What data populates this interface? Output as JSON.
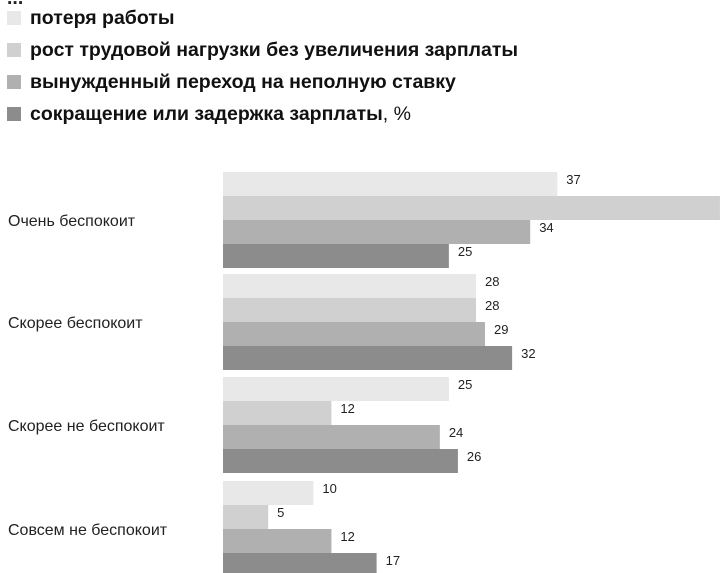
{
  "legend": {
    "header_fragment": "...",
    "suffix": ", %"
  },
  "chart_data": {
    "type": "bar",
    "orientation": "horizontal",
    "categories": [
      "Очень беспокоит",
      "Скорее беспокоит",
      "Скорее не беспокоит",
      "Совсем не беспокоит"
    ],
    "series": [
      {
        "name": "потеря работы",
        "color": "#e8e8e8",
        "values": [
          37,
          28,
          25,
          10
        ]
      },
      {
        "name": "рост трудовой нагрузки без увеличения зарплаты",
        "color": "#d0d0d0",
        "values": [
          55,
          28,
          12,
          5
        ]
      },
      {
        "name": "вынужденный переход на неполную ставку",
        "color": "#b0b0b0",
        "values": [
          34,
          29,
          24,
          12
        ]
      },
      {
        "name": "сокращение или задержка зарплаты",
        "color": "#8c8c8c",
        "values": [
          25,
          32,
          26,
          17
        ]
      }
    ],
    "xlim": [
      0,
      55
    ],
    "grid": false,
    "legend_position": "top-left"
  }
}
